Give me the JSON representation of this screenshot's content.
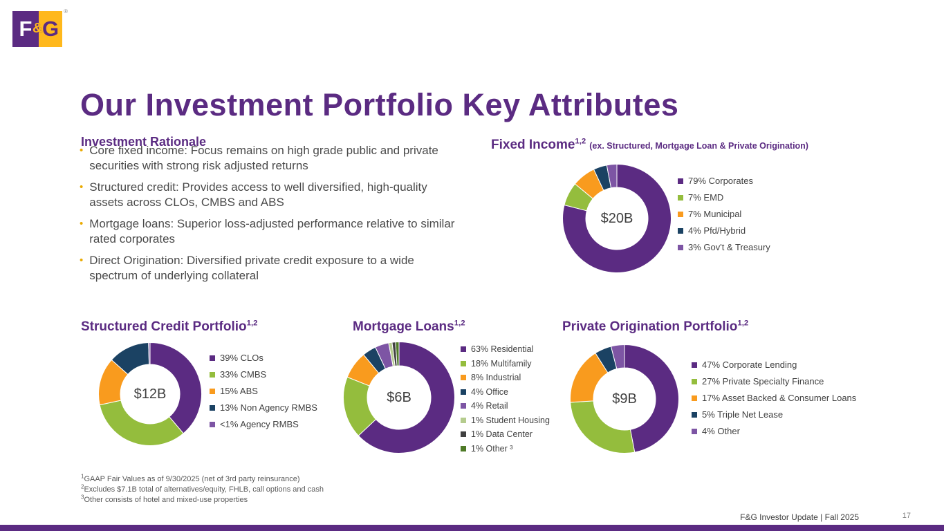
{
  "logo": {
    "f": "F",
    "amp": "&",
    "g": "G",
    "reg": "®"
  },
  "title": "Our Investment Portfolio Key Attributes",
  "rationale": {
    "heading": "Investment Rationale",
    "bullets": [
      "Core fixed income: Focus remains on high grade public and private securities with strong risk adjusted returns",
      "Structured credit: Provides access to well diversified, high-quality assets across CLOs, CMBS and ABS",
      "Mortgage loans: Superior loss-adjusted performance relative to similar rated corporates",
      "Direct Origination: Diversified private credit exposure to a wide spectrum of underlying collateral"
    ]
  },
  "footnotes": [
    {
      "sup": "1",
      "text": "GAAP Fair Values as of 9/30/2025 (net of 3rd party reinsurance)"
    },
    {
      "sup": "2",
      "text": "Excludes $7.1B total of alternatives/equity, FHLB, call options and cash"
    },
    {
      "sup": "3",
      "text": "Other consists of hotel and mixed-use properties"
    }
  ],
  "footer": {
    "left": "F&G Investor Update |  Fall 2025",
    "page": "17"
  },
  "colors": {
    "purple": "#5B2B82",
    "green": "#94BD3D",
    "orange": "#F99B1E",
    "navy": "#1B4263",
    "violet": "#7D55A4",
    "gold": "#EAAA00"
  },
  "chart_data": [
    {
      "id": "fixed-income",
      "type": "pie",
      "title": "Fixed Income",
      "title_sup": "1,2",
      "subtitle": "(ex. Structured, Mortgage Loan & Private Origination)",
      "center_label": "$20B",
      "legend_position": "right",
      "slices": [
        {
          "label": "79% Corporates",
          "value": 79,
          "color": "#5B2B82"
        },
        {
          "label": "7% EMD",
          "value": 7,
          "color": "#94BD3D"
        },
        {
          "label": "7% Municipal",
          "value": 7,
          "color": "#F99B1E"
        },
        {
          "label": "4% Pfd/Hybrid",
          "value": 4,
          "color": "#1B4263"
        },
        {
          "label": "3% Gov't & Treasury",
          "value": 3,
          "color": "#7D55A4"
        }
      ]
    },
    {
      "id": "structured-credit",
      "type": "pie",
      "title": "Structured Credit Portfolio",
      "title_sup": "1,2",
      "subtitle": "",
      "center_label": "$12B",
      "legend_position": "right",
      "slices": [
        {
          "label": "39% CLOs",
          "value": 39,
          "color": "#5B2B82"
        },
        {
          "label": "33% CMBS",
          "value": 33,
          "color": "#94BD3D"
        },
        {
          "label": "15% ABS",
          "value": 15,
          "color": "#F99B1E"
        },
        {
          "label": "13% Non Agency RMBS",
          "value": 13,
          "color": "#1B4263"
        },
        {
          "label": "<1% Agency RMBS",
          "value": 0.5,
          "color": "#7D55A4"
        }
      ]
    },
    {
      "id": "mortgage-loans",
      "type": "pie",
      "title": "Mortgage Loans",
      "title_sup": "1,2",
      "subtitle": "",
      "center_label": "$6B",
      "legend_position": "right",
      "slices": [
        {
          "label": "63% Residential",
          "value": 63,
          "color": "#5B2B82"
        },
        {
          "label": "18% Multifamily",
          "value": 18,
          "color": "#94BD3D"
        },
        {
          "label": "8% Industrial",
          "value": 8,
          "color": "#F99B1E"
        },
        {
          "label": "4% Office",
          "value": 4,
          "color": "#1B4263"
        },
        {
          "label": "4% Retail",
          "value": 4,
          "color": "#7D55A4"
        },
        {
          "label": "1% Student Housing",
          "value": 1,
          "color": "#B5CC8E"
        },
        {
          "label": "1% Data Center",
          "value": 1,
          "color": "#404040"
        },
        {
          "label": "1% Other ³",
          "value": 1,
          "color": "#4E7A27"
        }
      ]
    },
    {
      "id": "private-origination",
      "type": "pie",
      "title": "Private Origination Portfolio",
      "title_sup": "1,2",
      "subtitle": "",
      "center_label": "$9B",
      "legend_position": "right",
      "slices": [
        {
          "label": "47% Corporate Lending",
          "value": 47,
          "color": "#5B2B82"
        },
        {
          "label": "27% Private Specialty Finance",
          "value": 27,
          "color": "#94BD3D"
        },
        {
          "label": "17% Asset Backed & Consumer Loans",
          "value": 17,
          "color": "#F99B1E"
        },
        {
          "label": "5% Triple Net Lease",
          "value": 5,
          "color": "#1B4263"
        },
        {
          "label": "4% Other",
          "value": 4,
          "color": "#7D55A4"
        }
      ]
    }
  ]
}
